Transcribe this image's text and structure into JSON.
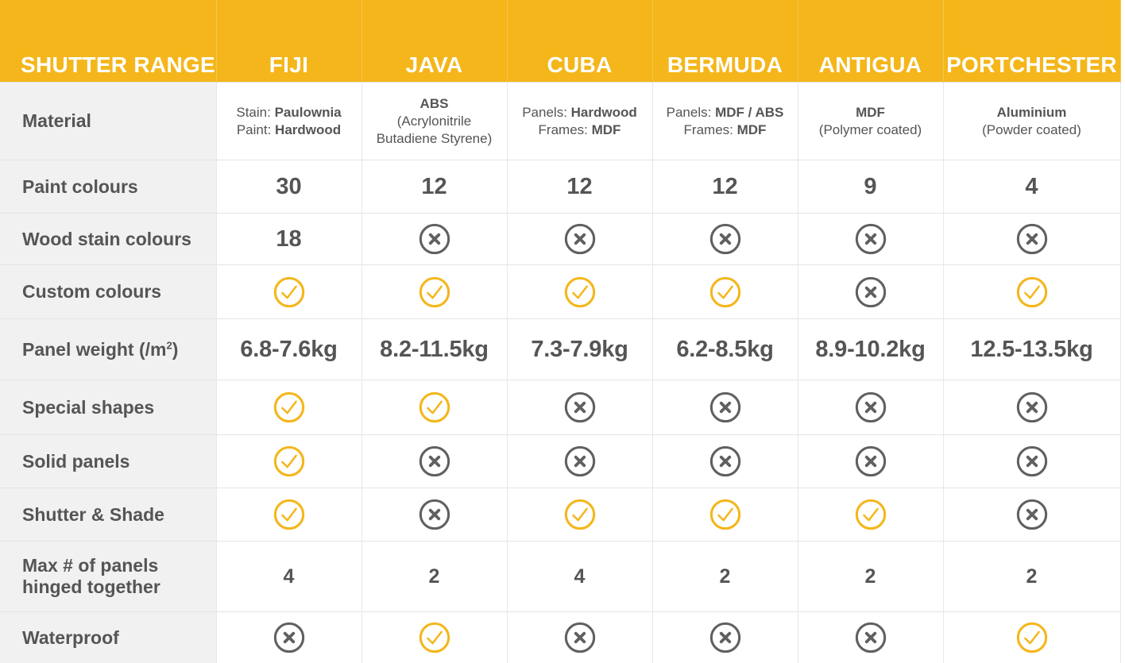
{
  "header": {
    "title": "SHUTTER RANGE",
    "columns": [
      "FIJI",
      "JAVA",
      "CUBA",
      "BERMUDA",
      "ANTIGUA",
      "PORTCHESTER"
    ]
  },
  "colors": {
    "header_bg": "#f4b61a",
    "check": "#f4b61a",
    "cross": "#606060",
    "label_bg": "#f1f1f1"
  },
  "rows": {
    "material": {
      "label": "Material",
      "fiji": {
        "l1a": "Stain: ",
        "l1b": "Paulownia",
        "l2a": "Paint: ",
        "l2b": "Hardwood"
      },
      "java": {
        "name": "ABS",
        "n1": "(Acrylonitrile",
        "n2": "Butadiene Styrene)"
      },
      "cuba": {
        "l1a": "Panels: ",
        "l1b": "Hardwood",
        "l2a": "Frames: ",
        "l2b": "MDF"
      },
      "bermuda": {
        "l1a": "Panels: ",
        "l1b": "MDF / ABS",
        "l2a": "Frames: ",
        "l2b": "MDF"
      },
      "antigua": {
        "name": "MDF",
        "note": "(Polymer coated)"
      },
      "portchester": {
        "name": "Aluminium",
        "note": "(Powder coated)"
      }
    },
    "paint": {
      "label": "Paint colours",
      "values": [
        "30",
        "12",
        "12",
        "12",
        "9",
        "4"
      ]
    },
    "stain": {
      "label": "Wood stain colours",
      "values": [
        "18",
        "x",
        "x",
        "x",
        "x",
        "x"
      ]
    },
    "custom": {
      "label": "Custom colours",
      "values": [
        "check",
        "check",
        "check",
        "check",
        "x",
        "check"
      ]
    },
    "weight": {
      "label_prefix": "Panel weight (/m",
      "label_sup": "2",
      "label_suffix": ")",
      "values": [
        "6.8-7.6kg",
        "8.2-11.5kg",
        "7.3-7.9kg",
        "6.2-8.5kg",
        "8.9-10.2kg",
        "12.5-13.5kg"
      ]
    },
    "shapes": {
      "label": "Special shapes",
      "values": [
        "check",
        "check",
        "x",
        "x",
        "x",
        "x"
      ]
    },
    "solid": {
      "label": "Solid panels",
      "values": [
        "check",
        "x",
        "x",
        "x",
        "x",
        "x"
      ]
    },
    "shade": {
      "label": "Shutter & Shade",
      "values": [
        "check",
        "x",
        "check",
        "check",
        "check",
        "x"
      ]
    },
    "panels": {
      "label_line1": "Max # of panels",
      "label_line2": "hinged together",
      "values": [
        "4",
        "2",
        "4",
        "2",
        "2",
        "2"
      ]
    },
    "water": {
      "label": "Waterproof",
      "values": [
        "x",
        "check",
        "x",
        "x",
        "x",
        "check"
      ]
    }
  }
}
